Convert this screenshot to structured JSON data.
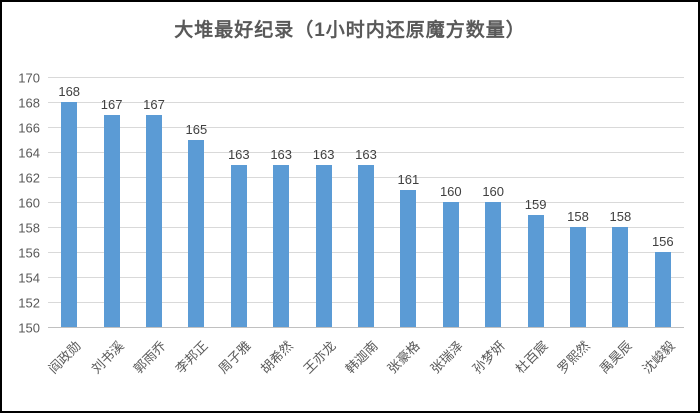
{
  "window": {
    "background_color": "#FFFFFF",
    "border_color": "#000000"
  },
  "chart_data": {
    "type": "bar",
    "title": "大堆最好纪录（1小时内还原魔方数量）",
    "categories": [
      "阎政勋",
      "刘书溪",
      "郭雨乔",
      "李邦正",
      "周子雅",
      "胡希然",
      "王亦龙",
      "韩迦南",
      "张豪格",
      "张瑞泽",
      "孙梦妍",
      "杜百宸",
      "罗熙然",
      "禹昊辰",
      "沈峻毅"
    ],
    "values": [
      168,
      167,
      167,
      165,
      163,
      163,
      163,
      163,
      161,
      160,
      160,
      159,
      158,
      158,
      156
    ],
    "data_labels": [
      "168",
      "167",
      "167",
      "165",
      "163",
      "163",
      "163",
      "163",
      "161",
      "160",
      "160",
      "159",
      "158",
      "158",
      "156"
    ],
    "xlabel": "",
    "ylabel": "",
    "ylim": [
      150,
      170
    ],
    "ytick_step": 2,
    "ytick_labels": [
      "150",
      "152",
      "154",
      "156",
      "158",
      "160",
      "162",
      "164",
      "166",
      "168",
      "170"
    ],
    "grid": true,
    "legend": false,
    "legend_position": "none",
    "bar_color": "#5B9BD5",
    "gridline_color": "#D9D9D9",
    "axis_line_color": "#C0C0C0",
    "tick_label_color": "#595959",
    "data_label_color": "#404040",
    "title_color": "#595959"
  }
}
